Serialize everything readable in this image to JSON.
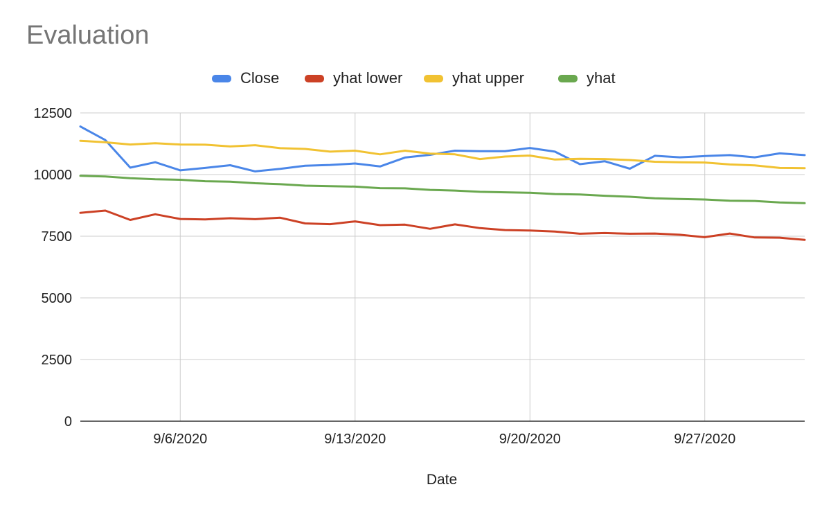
{
  "chart_data": {
    "type": "line",
    "title": "Evaluation",
    "xlabel": "Date",
    "ylabel": "",
    "ylim": [
      0,
      12500
    ],
    "yticks": [
      "0",
      "2500",
      "5000",
      "7500",
      "10000",
      "12500"
    ],
    "x_start": "2020-09-02",
    "x_end": "2020-10-01",
    "x_ticks": [
      {
        "date": "2020-09-06",
        "label": "9/6/2020"
      },
      {
        "date": "2020-09-13",
        "label": "9/13/2020"
      },
      {
        "date": "2020-09-20",
        "label": "9/20/2020"
      },
      {
        "date": "2020-09-27",
        "label": "9/27/2020"
      }
    ],
    "x": [
      "2020-09-02",
      "2020-09-03",
      "2020-09-04",
      "2020-09-05",
      "2020-09-06",
      "2020-09-07",
      "2020-09-08",
      "2020-09-09",
      "2020-09-10",
      "2020-09-11",
      "2020-09-12",
      "2020-09-13",
      "2020-09-14",
      "2020-09-15",
      "2020-09-16",
      "2020-09-17",
      "2020-09-18",
      "2020-09-19",
      "2020-09-20",
      "2020-09-21",
      "2020-09-22",
      "2020-09-23",
      "2020-09-24",
      "2020-09-25",
      "2020-09-26",
      "2020-09-27",
      "2020-09-28",
      "2020-09-29",
      "2020-09-30",
      "2020-10-01"
    ],
    "grid": true,
    "legend_position": "top",
    "series": [
      {
        "name": "Close",
        "color": "#4a86e8",
        "values": [
          11950,
          11400,
          10280,
          10500,
          10170,
          10270,
          10380,
          10130,
          10230,
          10360,
          10390,
          10450,
          10330,
          10690,
          10800,
          10970,
          10950,
          10950,
          11080,
          10930,
          10420,
          10540,
          10240,
          10760,
          10700,
          10750,
          10790,
          10700,
          10860,
          10790
        ]
      },
      {
        "name": "yhat lower",
        "color": "#cc4125",
        "values": [
          8450,
          8540,
          8160,
          8390,
          8200,
          8180,
          8230,
          8190,
          8250,
          8020,
          7990,
          8100,
          7950,
          7970,
          7800,
          7980,
          7830,
          7750,
          7730,
          7690,
          7600,
          7630,
          7600,
          7610,
          7560,
          7460,
          7610,
          7450,
          7440,
          7350
        ]
      },
      {
        "name": "yhat upper",
        "color": "#f1c232",
        "values": [
          11370,
          11310,
          11220,
          11270,
          11220,
          11210,
          11140,
          11190,
          11070,
          11040,
          10930,
          10970,
          10820,
          10970,
          10850,
          10820,
          10630,
          10730,
          10770,
          10610,
          10640,
          10630,
          10590,
          10520,
          10500,
          10490,
          10410,
          10370,
          10270,
          10260
        ]
      },
      {
        "name": "yhat",
        "color": "#6aa84f",
        "values": [
          9950,
          9920,
          9850,
          9810,
          9790,
          9730,
          9710,
          9650,
          9610,
          9550,
          9530,
          9510,
          9450,
          9440,
          9380,
          9350,
          9300,
          9280,
          9260,
          9210,
          9190,
          9140,
          9100,
          9040,
          9010,
          8990,
          8940,
          8930,
          8870,
          8840
        ]
      }
    ]
  }
}
